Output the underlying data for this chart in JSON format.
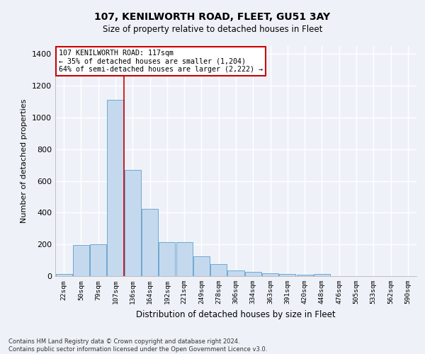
{
  "title1": "107, KENILWORTH ROAD, FLEET, GU51 3AY",
  "title2": "Size of property relative to detached houses in Fleet",
  "xlabel": "Distribution of detached houses by size in Fleet",
  "ylabel": "Number of detached properties",
  "bar_color": "#c5d9ee",
  "bar_edge_color": "#6fa8d0",
  "categories": [
    "22sqm",
    "50sqm",
    "79sqm",
    "107sqm",
    "136sqm",
    "164sqm",
    "192sqm",
    "221sqm",
    "249sqm",
    "278sqm",
    "306sqm",
    "334sqm",
    "363sqm",
    "391sqm",
    "420sqm",
    "448sqm",
    "476sqm",
    "505sqm",
    "533sqm",
    "562sqm",
    "590sqm"
  ],
  "values": [
    15,
    195,
    200,
    1110,
    670,
    425,
    215,
    215,
    125,
    75,
    35,
    28,
    20,
    12,
    8,
    12,
    0,
    0,
    0,
    0,
    0
  ],
  "ylim": [
    0,
    1450
  ],
  "yticks": [
    0,
    200,
    400,
    600,
    800,
    1000,
    1200,
    1400
  ],
  "vline_index": 3.5,
  "vline_color": "#cc0000",
  "annotation_text": "107 KENILWORTH ROAD: 117sqm\n← 35% of detached houses are smaller (1,204)\n64% of semi-detached houses are larger (2,222) →",
  "annotation_box_color": "#ffffff",
  "annotation_box_edge": "#cc0000",
  "footer": "Contains HM Land Registry data © Crown copyright and database right 2024.\nContains public sector information licensed under the Open Government Licence v3.0.",
  "bg_color": "#eef2f8",
  "grid_color": "#ffffff"
}
